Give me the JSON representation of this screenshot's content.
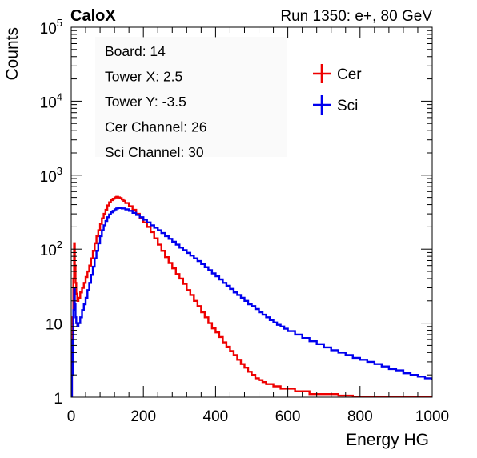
{
  "chart_data": {
    "type": "line",
    "title_left": "CaloX",
    "title_right": "Run 1350: e+, 80 GeV",
    "xlabel": "Energy HG",
    "ylabel": "Counts",
    "xlim": [
      0,
      1000
    ],
    "ylim": [
      1,
      100000
    ],
    "y_scale": "log",
    "x_ticks": [
      0,
      200,
      400,
      600,
      800,
      1000
    ],
    "x_tick_labels": [
      "0",
      "200",
      "400",
      "600",
      "800",
      "1000"
    ],
    "y_ticks": [
      1,
      10,
      100,
      1000,
      10000,
      100000
    ],
    "y_tick_labels": [
      {
        "base": "1",
        "exp": ""
      },
      {
        "base": "10",
        "exp": ""
      },
      {
        "base": "10",
        "exp": "2"
      },
      {
        "base": "10",
        "exp": "3"
      },
      {
        "base": "10",
        "exp": "4"
      },
      {
        "base": "10",
        "exp": "5"
      }
    ],
    "grid": false,
    "legend_position": "top-right",
    "info_box": [
      "Board: 14",
      "Tower X: 2.5",
      "Tower Y: -3.5",
      "Cer Channel: 26",
      "Sci Channel: 30"
    ],
    "series": [
      {
        "name": "Cer",
        "color": "#ee0000",
        "points": [
          [
            0,
            1
          ],
          [
            2,
            4
          ],
          [
            4,
            12
          ],
          [
            6,
            40
          ],
          [
            8,
            120
          ],
          [
            10,
            60
          ],
          [
            12,
            35
          ],
          [
            14,
            25
          ],
          [
            17,
            20
          ],
          [
            20,
            22
          ],
          [
            25,
            26
          ],
          [
            30,
            30
          ],
          [
            35,
            35
          ],
          [
            40,
            42
          ],
          [
            45,
            50
          ],
          [
            50,
            60
          ],
          [
            55,
            75
          ],
          [
            60,
            95
          ],
          [
            65,
            120
          ],
          [
            70,
            150
          ],
          [
            75,
            180
          ],
          [
            80,
            220
          ],
          [
            85,
            260
          ],
          [
            90,
            300
          ],
          [
            95,
            340
          ],
          [
            100,
            390
          ],
          [
            105,
            430
          ],
          [
            110,
            460
          ],
          [
            115,
            480
          ],
          [
            120,
            500
          ],
          [
            125,
            510
          ],
          [
            130,
            500
          ],
          [
            135,
            490
          ],
          [
            140,
            470
          ],
          [
            145,
            450
          ],
          [
            150,
            420
          ],
          [
            160,
            380
          ],
          [
            170,
            340
          ],
          [
            180,
            300
          ],
          [
            190,
            260
          ],
          [
            200,
            230
          ],
          [
            210,
            200
          ],
          [
            220,
            170
          ],
          [
            230,
            140
          ],
          [
            240,
            115
          ],
          [
            250,
            95
          ],
          [
            260,
            78
          ],
          [
            270,
            65
          ],
          [
            280,
            55
          ],
          [
            290,
            46
          ],
          [
            300,
            40
          ],
          [
            310,
            34
          ],
          [
            320,
            28
          ],
          [
            330,
            24
          ],
          [
            340,
            20
          ],
          [
            350,
            17
          ],
          [
            360,
            14
          ],
          [
            370,
            12
          ],
          [
            380,
            10
          ],
          [
            390,
            8.5
          ],
          [
            400,
            7.5
          ],
          [
            410,
            6.5
          ],
          [
            420,
            5.5
          ],
          [
            430,
            4.8
          ],
          [
            440,
            4.2
          ],
          [
            450,
            3.7
          ],
          [
            460,
            3.2
          ],
          [
            470,
            2.8
          ],
          [
            480,
            2.5
          ],
          [
            490,
            2.2
          ],
          [
            500,
            2.0
          ],
          [
            510,
            1.8
          ],
          [
            520,
            1.7
          ],
          [
            530,
            1.6
          ],
          [
            540,
            1.5
          ],
          [
            560,
            1.4
          ],
          [
            580,
            1.3
          ],
          [
            600,
            1.3
          ],
          [
            620,
            1.2
          ],
          [
            640,
            1.2
          ],
          [
            660,
            1.1
          ],
          [
            680,
            1.1
          ],
          [
            700,
            1.1
          ],
          [
            720,
            1.1
          ],
          [
            740,
            1.05
          ],
          [
            760,
            1.05
          ],
          [
            780,
            1.0
          ],
          [
            800,
            1.0
          ],
          [
            850,
            1.0
          ],
          [
            900,
            1.0
          ],
          [
            950,
            1.0
          ],
          [
            1000,
            1.0
          ]
        ]
      },
      {
        "name": "Sci",
        "color": "#0000ee",
        "points": [
          [
            0,
            1
          ],
          [
            2,
            2
          ],
          [
            4,
            6
          ],
          [
            6,
            15
          ],
          [
            8,
            30
          ],
          [
            10,
            18
          ],
          [
            12,
            12
          ],
          [
            14,
            10
          ],
          [
            17,
            9
          ],
          [
            20,
            10
          ],
          [
            25,
            12
          ],
          [
            30,
            15
          ],
          [
            35,
            18
          ],
          [
            40,
            22
          ],
          [
            45,
            28
          ],
          [
            50,
            35
          ],
          [
            55,
            45
          ],
          [
            60,
            58
          ],
          [
            65,
            75
          ],
          [
            70,
            95
          ],
          [
            75,
            120
          ],
          [
            80,
            150
          ],
          [
            85,
            180
          ],
          [
            90,
            210
          ],
          [
            95,
            240
          ],
          [
            100,
            270
          ],
          [
            105,
            295
          ],
          [
            110,
            315
          ],
          [
            115,
            330
          ],
          [
            120,
            345
          ],
          [
            125,
            355
          ],
          [
            130,
            360
          ],
          [
            140,
            355
          ],
          [
            150,
            345
          ],
          [
            160,
            330
          ],
          [
            170,
            310
          ],
          [
            180,
            290
          ],
          [
            190,
            270
          ],
          [
            200,
            250
          ],
          [
            210,
            230
          ],
          [
            220,
            210
          ],
          [
            230,
            195
          ],
          [
            240,
            180
          ],
          [
            250,
            165
          ],
          [
            260,
            150
          ],
          [
            270,
            138
          ],
          [
            280,
            126
          ],
          [
            290,
            115
          ],
          [
            300,
            105
          ],
          [
            310,
            97
          ],
          [
            320,
            89
          ],
          [
            330,
            82
          ],
          [
            340,
            75
          ],
          [
            350,
            69
          ],
          [
            360,
            63
          ],
          [
            370,
            57
          ],
          [
            380,
            52
          ],
          [
            390,
            47
          ],
          [
            400,
            43
          ],
          [
            410,
            39
          ],
          [
            420,
            35
          ],
          [
            430,
            32
          ],
          [
            440,
            29
          ],
          [
            450,
            26
          ],
          [
            460,
            24
          ],
          [
            470,
            22
          ],
          [
            480,
            20
          ],
          [
            490,
            18
          ],
          [
            500,
            17
          ],
          [
            510,
            15.5
          ],
          [
            520,
            14
          ],
          [
            530,
            13
          ],
          [
            540,
            12
          ],
          [
            550,
            11
          ],
          [
            560,
            10.2
          ],
          [
            570,
            9.5
          ],
          [
            580,
            9
          ],
          [
            590,
            8.4
          ],
          [
            600,
            7.8
          ],
          [
            620,
            7
          ],
          [
            640,
            6.3
          ],
          [
            660,
            5.7
          ],
          [
            680,
            5.2
          ],
          [
            700,
            4.7
          ],
          [
            720,
            4.3
          ],
          [
            740,
            4
          ],
          [
            760,
            3.7
          ],
          [
            780,
            3.4
          ],
          [
            800,
            3.2
          ],
          [
            820,
            3
          ],
          [
            840,
            2.8
          ],
          [
            860,
            2.6
          ],
          [
            880,
            2.4
          ],
          [
            900,
            2.3
          ],
          [
            920,
            2.1
          ],
          [
            940,
            2
          ],
          [
            960,
            1.9
          ],
          [
            980,
            1.8
          ],
          [
            1000,
            1.7
          ]
        ]
      }
    ]
  }
}
